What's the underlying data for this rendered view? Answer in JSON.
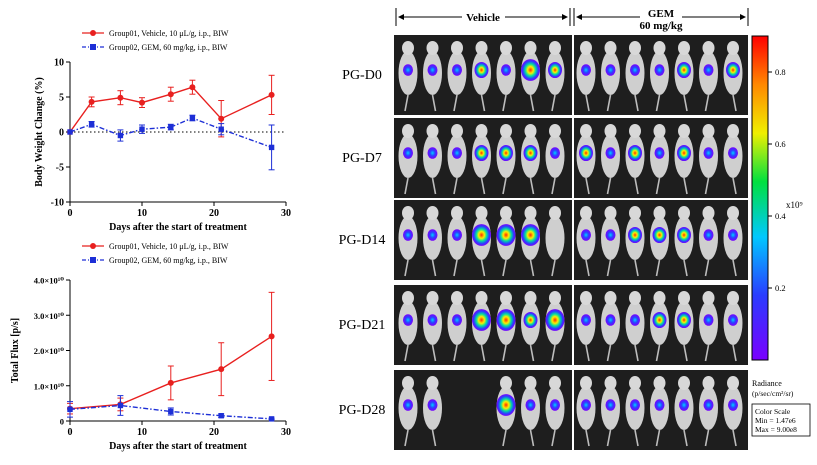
{
  "colors": {
    "vehicle": "#e8201f",
    "gem": "#1d2fd6",
    "axis": "#000000",
    "photo_bg": "#1e1e1e"
  },
  "chart_data": [
    {
      "type": "line",
      "xlabel": "Days after the start of treatment",
      "ylabel": "Body Weight Change (%)",
      "xlim": [
        0,
        30
      ],
      "ylim": [
        -10,
        10
      ],
      "xticks": [
        "0",
        "10",
        "20",
        "30"
      ],
      "yticks": [
        "-10",
        "-5",
        "0",
        "5",
        "10"
      ],
      "grid": false,
      "reference_line": {
        "y": 0,
        "style": "dotted"
      },
      "legend_position": "top",
      "series": [
        {
          "name": "Group01, Vehicle, 10 μL/g, i.p., BIW",
          "x": [
            0,
            3,
            7,
            10,
            14,
            17,
            21,
            28
          ],
          "y": [
            0,
            4.3,
            4.9,
            4.2,
            5.4,
            6.4,
            1.9,
            5.3
          ],
          "err": [
            0,
            0.7,
            1.0,
            0.7,
            1.0,
            1.0,
            2.6,
            2.8
          ]
        },
        {
          "name": "Group02, GEM, 60 mg/kg, i.p., BIW",
          "x": [
            0,
            3,
            7,
            10,
            14,
            17,
            21,
            28
          ],
          "y": [
            0,
            1.1,
            -0.5,
            0.4,
            0.7,
            2.0,
            0.4,
            -2.2
          ],
          "err": [
            0,
            0.4,
            0.8,
            0.6,
            0.4,
            0.4,
            0.8,
            3.2
          ]
        }
      ]
    },
    {
      "type": "line",
      "xlabel": "Days after the start of treatment",
      "ylabel": "Total Flux [p/s]",
      "xlim": [
        0,
        30
      ],
      "ylim": [
        0,
        40000000000.0
      ],
      "xticks": [
        "0",
        "10",
        "20",
        "30"
      ],
      "yticks": [
        "0",
        "1.0×10¹⁰",
        "2.0×10¹⁰",
        "3.0×10¹⁰",
        "4.0×10¹⁰"
      ],
      "grid": false,
      "legend_position": "top",
      "series": [
        {
          "name": "Group01, Vehicle, 10 μL/g, i.p., BIW",
          "x": [
            0,
            7,
            14,
            21,
            28
          ],
          "y": [
            3500000000.0,
            4700000000.0,
            10800000000.0,
            14700000000.0,
            24000000000.0
          ],
          "err": [
            1500000000.0,
            1800000000.0,
            4800000000.0,
            7500000000.0,
            12500000000.0
          ]
        },
        {
          "name": "Group02, GEM, 60 mg/kg, i.p., BIW",
          "x": [
            0,
            7,
            14,
            21,
            28
          ],
          "y": [
            3300000000.0,
            4400000000.0,
            2700000000.0,
            1500000000.0,
            600000000.0
          ],
          "err": [
            2200000000.0,
            2800000000.0,
            1000000000.0,
            500000000.0,
            200000000.0
          ]
        }
      ]
    }
  ],
  "imaging": {
    "groups": [
      {
        "label": "Vehicle"
      },
      {
        "label": "GEM",
        "sub": "60 mg/kg"
      }
    ],
    "rows": [
      "PG-D0",
      "PG-D7",
      "PG-D14",
      "PG-D21",
      "PG-D28"
    ],
    "colorbar": {
      "ticks": [
        "0.8",
        "0.6",
        "0.4",
        "0.2"
      ],
      "exponent_label": "x10⁹",
      "title": "Radiance",
      "units": "(p/sec/cm²/sr)",
      "scale_title": "Color Scale",
      "scale_min": "Min = 1.47e6",
      "scale_max": "Max = 9.00e8"
    }
  }
}
